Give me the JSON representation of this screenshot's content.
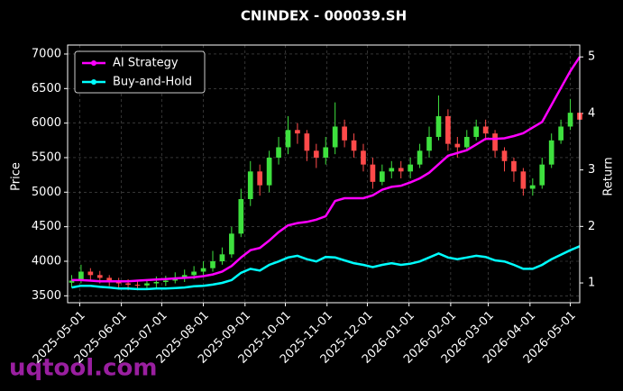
{
  "chart_data": {
    "type": "candlestick",
    "title": "CNINDEX - 000039.SH",
    "ylabel": "Price",
    "y2label": "Return",
    "watermark": "uqtool.com",
    "up_color": "#3ee03e",
    "down_color": "#ff4a4a",
    "grid": true,
    "legend": "upper left",
    "x": [
      "2025-04-25",
      "2025-05-02",
      "2025-05-09",
      "2025-05-16",
      "2025-05-23",
      "2025-05-30",
      "2025-06-06",
      "2025-06-13",
      "2025-06-20",
      "2025-06-27",
      "2025-07-04",
      "2025-07-11",
      "2025-07-18",
      "2025-07-25",
      "2025-08-01",
      "2025-08-08",
      "2025-08-15",
      "2025-08-22",
      "2025-08-29",
      "2025-09-05",
      "2025-09-12",
      "2025-09-19",
      "2025-09-26",
      "2025-10-03",
      "2025-10-10",
      "2025-10-17",
      "2025-10-24",
      "2025-10-31",
      "2025-11-07",
      "2025-11-14",
      "2025-11-21",
      "2025-11-28",
      "2025-12-05",
      "2025-12-12",
      "2025-12-19",
      "2025-12-26",
      "2026-01-02",
      "2026-01-09",
      "2026-01-16",
      "2026-01-23",
      "2026-01-30",
      "2026-02-06",
      "2026-02-13",
      "2026-02-20",
      "2026-02-27",
      "2026-03-06",
      "2026-03-13",
      "2026-03-20",
      "2026-03-27",
      "2026-04-03",
      "2026-04-10",
      "2026-04-17",
      "2026-04-24",
      "2026-05-01",
      "2026-05-08"
    ],
    "open": [
      3690,
      3720,
      3850,
      3800,
      3760,
      3720,
      3680,
      3660,
      3650,
      3680,
      3700,
      3720,
      3760,
      3800,
      3850,
      3900,
      4000,
      4100,
      4400,
      4900,
      5300,
      5100,
      5500,
      5650,
      5900,
      5850,
      5600,
      5500,
      5650,
      5950,
      5750,
      5600,
      5400,
      5150,
      5300,
      5350,
      5300,
      5400,
      5600,
      5800,
      6100,
      5700,
      5650,
      5800,
      5950,
      5850,
      5600,
      5450,
      5300,
      5050,
      5100,
      5400,
      5750,
      5950,
      6150
    ],
    "high": [
      3800,
      3950,
      3900,
      3860,
      3800,
      3760,
      3740,
      3720,
      3740,
      3780,
      3790,
      3840,
      3880,
      3930,
      4000,
      4150,
      4200,
      4500,
      5050,
      5450,
      5400,
      5600,
      5800,
      6100,
      6000,
      5900,
      5700,
      5800,
      6300,
      6050,
      5850,
      5700,
      5500,
      5400,
      5450,
      5450,
      5500,
      5700,
      5950,
      6400,
      6200,
      5800,
      5900,
      6050,
      6050,
      5900,
      5650,
      5500,
      5350,
      5200,
      5500,
      5850,
      6050,
      6350,
      6300
    ],
    "low": [
      3620,
      3680,
      3720,
      3680,
      3640,
      3600,
      3580,
      3580,
      3600,
      3620,
      3640,
      3680,
      3700,
      3740,
      3800,
      3850,
      3950,
      4050,
      4350,
      4800,
      4950,
      5000,
      5400,
      5550,
      5700,
      5450,
      5350,
      5400,
      5550,
      5650,
      5500,
      5300,
      5050,
      5100,
      5200,
      5200,
      5200,
      5350,
      5500,
      5750,
      5600,
      5500,
      5600,
      5750,
      5750,
      5500,
      5300,
      5150,
      4950,
      4950,
      5050,
      5350,
      5700,
      5900,
      5950
    ],
    "close": [
      3720,
      3850,
      3800,
      3760,
      3720,
      3680,
      3660,
      3650,
      3680,
      3700,
      3720,
      3760,
      3800,
      3850,
      3900,
      4000,
      4100,
      4400,
      4900,
      5300,
      5100,
      5500,
      5650,
      5900,
      5850,
      5600,
      5500,
      5650,
      5950,
      5750,
      5600,
      5400,
      5150,
      5300,
      5350,
      5300,
      5400,
      5600,
      5800,
      6100,
      5700,
      5650,
      5800,
      5950,
      5850,
      5600,
      5450,
      5300,
      5050,
      5100,
      5400,
      5750,
      5950,
      6150,
      6050
    ],
    "series": [
      {
        "name": "AI Strategy",
        "color": "#ff00ff",
        "axis": "y2",
        "values": [
          1.05,
          1.05,
          1.04,
          1.03,
          1.03,
          1.03,
          1.03,
          1.04,
          1.05,
          1.06,
          1.07,
          1.08,
          1.09,
          1.1,
          1.12,
          1.15,
          1.2,
          1.3,
          1.45,
          1.58,
          1.62,
          1.75,
          1.9,
          2.02,
          2.06,
          2.08,
          2.12,
          2.18,
          2.45,
          2.5,
          2.5,
          2.5,
          2.55,
          2.65,
          2.7,
          2.72,
          2.78,
          2.85,
          2.95,
          3.1,
          3.25,
          3.3,
          3.35,
          3.45,
          3.55,
          3.55,
          3.56,
          3.6,
          3.65,
          3.75,
          3.85,
          4.15,
          4.45,
          4.75,
          5.0
        ]
      },
      {
        "name": "Buy-and-Hold",
        "color": "#00ffff",
        "axis": "y2",
        "values": [
          0.92,
          0.95,
          0.95,
          0.93,
          0.92,
          0.9,
          0.9,
          0.89,
          0.89,
          0.9,
          0.9,
          0.91,
          0.92,
          0.94,
          0.95,
          0.97,
          1.0,
          1.05,
          1.18,
          1.25,
          1.22,
          1.32,
          1.38,
          1.45,
          1.48,
          1.42,
          1.38,
          1.46,
          1.45,
          1.4,
          1.35,
          1.32,
          1.28,
          1.32,
          1.35,
          1.32,
          1.34,
          1.38,
          1.45,
          1.52,
          1.45,
          1.42,
          1.45,
          1.48,
          1.46,
          1.4,
          1.38,
          1.32,
          1.25,
          1.25,
          1.32,
          1.42,
          1.5,
          1.58,
          1.65
        ]
      }
    ],
    "xlim": [
      "2025-04-22",
      "2026-05-08"
    ],
    "xticks": [
      "2025-05-01",
      "2025-06-01",
      "2025-07-01",
      "2025-08-01",
      "2025-09-01",
      "2025-10-01",
      "2025-11-01",
      "2025-12-01",
      "2026-01-01",
      "2026-02-01",
      "2026-03-01",
      "2026-04-01",
      "2026-05-01"
    ],
    "ylim": [
      3400,
      7130
    ],
    "yticks": [
      3500,
      4000,
      4500,
      5000,
      5500,
      6000,
      6500,
      7000
    ],
    "y2lim": [
      0.65,
      5.21
    ],
    "y2ticks": [
      1,
      2,
      3,
      4,
      5
    ]
  }
}
